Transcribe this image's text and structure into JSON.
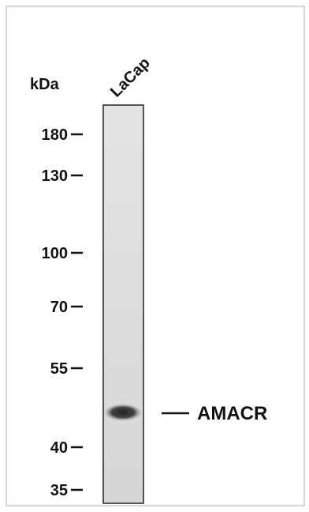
{
  "unit_label": "kDa",
  "lane_label": "LaCap",
  "markers": [
    "180",
    "130",
    "100",
    "70",
    "55",
    "40",
    "35"
  ],
  "band_label": "AMACR"
}
